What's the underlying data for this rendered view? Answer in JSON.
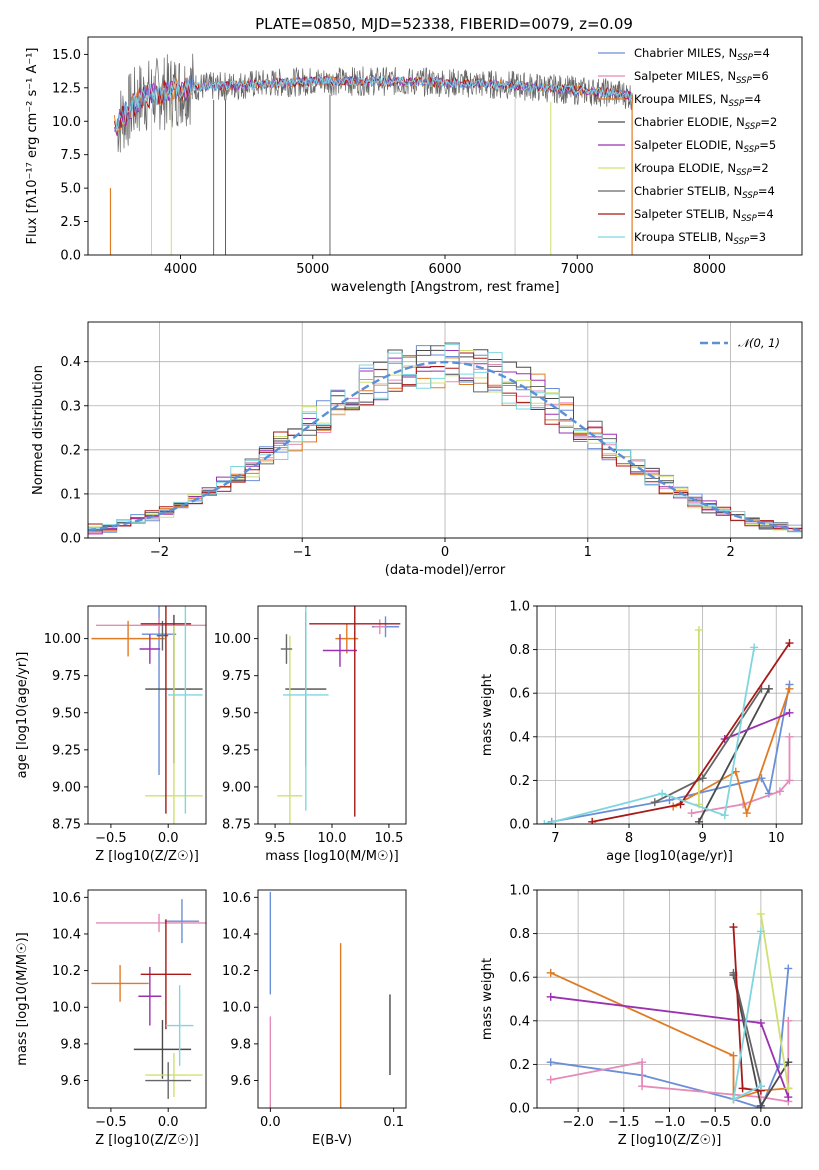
{
  "figure": {
    "title": "PLATE=0850, MJD=52338, FIBERID=0079, z=0.09"
  },
  "colors": {
    "chabrier_miles": "#6a8fd8",
    "salpeter_miles": "#e48bb8",
    "kroupa_miles": "#e07b25",
    "chabrier_elodie": "#4a4a4a",
    "salpeter_elodie": "#9b30b0",
    "kroupa_elodie": "#cfe070",
    "chabrier_stelib": "#666666",
    "salpeter_stelib": "#a81818",
    "kroupa_stelib": "#7fd6df",
    "normal_curve": "#5b8fd8"
  },
  "chart_data": [
    {
      "id": "spectrum",
      "type": "line",
      "title": "PLATE=0850, MJD=52338, FIBERID=0079, z=0.09",
      "xlabel": "wavelength [Angstrom, rest frame]",
      "ylabel": "Flux [fλ10⁻¹⁷ erg cm⁻² s⁻¹ A⁻¹]",
      "xlim": [
        3300,
        8700
      ],
      "ylim": [
        0,
        16.3
      ],
      "xticks": [
        "4000",
        "5000",
        "6000",
        "7000",
        "8000"
      ],
      "yticks": [
        "0.0",
        "2.5",
        "5.0",
        "7.5",
        "10.0",
        "12.5",
        "15.0"
      ],
      "legend_position": "upper right",
      "legend": [
        "Chabrier MILES, N_SSP=4",
        "Salpeter MILES, N_SSP=6",
        "Kroupa MILES, N_SSP=4",
        "Chabrier ELODIE, N_SSP=2",
        "Salpeter ELODIE, N_SSP=5",
        "Kroupa ELODIE, N_SSP=2",
        "Chabrier STELIB, N_SSP=4",
        "Salpeter STELIB, N_SSP=4",
        "Kroupa STELIB, N_SSP=3"
      ],
      "continuum": {
        "x": [
          3500,
          3700,
          3900,
          4100,
          4300,
          4600,
          5000,
          5500,
          6000,
          6500,
          7000,
          7300,
          7420
        ],
        "y": [
          9.6,
          11.8,
          12.2,
          12.6,
          12.6,
          12.8,
          13.0,
          13.0,
          12.9,
          12.7,
          12.3,
          12.1,
          11.9
        ]
      }
    },
    {
      "id": "residuals",
      "type": "line",
      "xlabel": "(data-model)/error",
      "ylabel": "Normed distribution",
      "xlim": [
        -2.5,
        2.5
      ],
      "ylim": [
        0,
        0.49
      ],
      "xticks": [
        "-2",
        "-1",
        "0",
        "1",
        "2"
      ],
      "yticks": [
        "0.0",
        "0.1",
        "0.2",
        "0.3",
        "0.4"
      ],
      "grid": true,
      "legend_position": "upper right",
      "legend": [
        "𝒩(0, 1)"
      ],
      "normal": {
        "mean": 0,
        "sigma": 1
      }
    },
    {
      "id": "age_vs_z",
      "type": "scatter",
      "xlabel": "Z [log10(Z/Z☉)]",
      "ylabel": "age  [log10(age/yr)]",
      "xlim": [
        -0.7,
        0.33
      ],
      "ylim": [
        8.75,
        10.22
      ],
      "xticks": [
        "-0.5",
        "0.0"
      ],
      "yticks": [
        "8.75",
        "9.00",
        "9.25",
        "9.50",
        "9.75",
        "10.00"
      ],
      "points": [
        {
          "x": -0.08,
          "y": 10.03,
          "xerr": 0.15,
          "yerr": 0.95
        },
        {
          "x": -0.08,
          "y": 10.09,
          "xerr": 0.55,
          "yerr": 0.05
        },
        {
          "x": -0.35,
          "y": 10.0,
          "xerr": 0.32,
          "yerr": 0.12
        },
        {
          "x": 0.05,
          "y": 9.66,
          "xerr": 0.25,
          "yerr": 0.5
        },
        {
          "x": -0.16,
          "y": 9.93,
          "xerr": 0.09,
          "yerr": 0.1
        },
        {
          "x": 0.05,
          "y": 8.94,
          "xerr": 0.25,
          "yerr": 1.15
        },
        {
          "x": -0.05,
          "y": 10.02,
          "xerr": 0.05,
          "yerr": 0.1
        },
        {
          "x": -0.02,
          "y": 10.1,
          "xerr": 0.22,
          "yerr": 1.28
        },
        {
          "x": 0.15,
          "y": 9.62,
          "xerr": 0.15,
          "yerr": 0.8
        }
      ]
    },
    {
      "id": "age_vs_mass",
      "type": "scatter",
      "xlabel": "mass [log10(M/M☉)]",
      "ylabel": "",
      "xlim": [
        9.35,
        10.65
      ],
      "ylim": [
        8.75,
        10.22
      ],
      "xticks": [
        "9.5",
        "10.0",
        "10.5"
      ],
      "yticks": [
        "8.75",
        "9.00",
        "9.25",
        "9.50",
        "9.75",
        "10.00"
      ],
      "points": [
        {
          "x": 10.47,
          "y": 10.08,
          "xerr": 0.12,
          "yerr": 0.07
        },
        {
          "x": 10.42,
          "y": 10.08,
          "xerr": 0.05,
          "yerr": 0.05
        },
        {
          "x": 10.13,
          "y": 10.0,
          "xerr": 0.1,
          "yerr": 0.1
        },
        {
          "x": 9.77,
          "y": 9.66,
          "xerr": 0.18,
          "yerr": 0.52
        },
        {
          "x": 10.07,
          "y": 9.92,
          "xerr": 0.15,
          "yerr": 0.11
        },
        {
          "x": 9.63,
          "y": 8.94,
          "xerr": 0.11,
          "yerr": 1.08
        },
        {
          "x": 9.6,
          "y": 9.93,
          "xerr": 0.05,
          "yerr": 0.1
        },
        {
          "x": 10.2,
          "y": 10.1,
          "xerr": 0.4,
          "yerr": 1.3
        },
        {
          "x": 9.77,
          "y": 9.62,
          "xerr": 0.2,
          "yerr": 0.78
        }
      ]
    },
    {
      "id": "weight_vs_age",
      "type": "line",
      "xlabel": "age  [log10(age/yr)]",
      "ylabel": "mass weight",
      "xlim": [
        6.75,
        10.35
      ],
      "ylim": [
        0,
        1.0
      ],
      "xticks": [
        "7",
        "8",
        "9",
        "10"
      ],
      "yticks": [
        "0.0",
        "0.2",
        "0.4",
        "0.6",
        "0.8",
        "1.0"
      ],
      "grid": true,
      "series": [
        {
          "name": "Chabrier MILES",
          "x": [
            6.95,
            8.55,
            9.8,
            9.9,
            10.18
          ],
          "y": [
            0.01,
            0.11,
            0.21,
            0.14,
            0.64
          ]
        },
        {
          "name": "Salpeter MILES",
          "x": [
            8.85,
            9.55,
            10.05,
            10.18,
            10.18
          ],
          "y": [
            0.05,
            0.09,
            0.15,
            0.2,
            0.4
          ]
        },
        {
          "name": "Kroupa MILES",
          "x": [
            8.6,
            9.45,
            9.6,
            10.18
          ],
          "y": [
            0.08,
            0.24,
            0.05,
            0.62
          ]
        },
        {
          "name": "Chabrier ELODIE",
          "x": [
            8.95,
            9.9
          ],
          "y": [
            0.01,
            0.62
          ]
        },
        {
          "name": "Salpeter ELODIE",
          "x": [
            9.3,
            10.18
          ],
          "y": [
            0.39,
            0.51
          ]
        },
        {
          "name": "Kroupa ELODIE",
          "x": [
            8.95,
            8.95
          ],
          "y": [
            0.09,
            0.89
          ]
        },
        {
          "name": "Chabrier STELIB",
          "x": [
            8.35,
            9.0,
            9.8
          ],
          "y": [
            0.1,
            0.21,
            0.62
          ]
        },
        {
          "name": "Salpeter STELIB",
          "x": [
            7.5,
            8.7,
            10.18
          ],
          "y": [
            0.01,
            0.09,
            0.83
          ]
        },
        {
          "name": "Kroupa STELIB",
          "x": [
            6.85,
            8.45,
            9.3,
            9.7
          ],
          "y": [
            0.0,
            0.14,
            0.04,
            0.81
          ]
        }
      ]
    },
    {
      "id": "mass_vs_z",
      "type": "scatter",
      "xlabel": "Z [log10(Z/Z☉)]",
      "ylabel": "mass [log10(M/M☉)]",
      "xlim": [
        -0.7,
        0.33
      ],
      "ylim": [
        9.45,
        10.64
      ],
      "xticks": [
        "-0.5",
        "0.0"
      ],
      "yticks": [
        "9.6",
        "9.8",
        "10.0",
        "10.2",
        "10.4",
        "10.6"
      ],
      "points": [
        {
          "x": 0.12,
          "y": 10.47,
          "xerr": 0.15,
          "yerr": 0.12
        },
        {
          "x": -0.08,
          "y": 10.46,
          "xerr": 0.55,
          "yerr": 0.05
        },
        {
          "x": -0.42,
          "y": 10.13,
          "xerr": 0.25,
          "yerr": 0.1
        },
        {
          "x": -0.05,
          "y": 9.77,
          "xerr": 0.25,
          "yerr": 0.16
        },
        {
          "x": -0.16,
          "y": 10.06,
          "xerr": 0.1,
          "yerr": 0.16
        },
        {
          "x": 0.05,
          "y": 9.63,
          "xerr": 0.25,
          "yerr": 0.12
        },
        {
          "x": 0.0,
          "y": 9.6,
          "xerr": 0.2,
          "yerr": 0.1
        },
        {
          "x": -0.02,
          "y": 10.18,
          "xerr": 0.22,
          "yerr": 0.3
        },
        {
          "x": 0.1,
          "y": 9.9,
          "xerr": 0.12,
          "yerr": 0.22
        }
      ]
    },
    {
      "id": "mass_vs_ebv",
      "type": "scatter",
      "xlabel": "E(B-V)",
      "ylabel": "",
      "xlim": [
        -0.01,
        0.11
      ],
      "ylim": [
        9.45,
        10.64
      ],
      "xticks": [
        "0.0",
        "0.1"
      ],
      "yticks": [
        "9.6",
        "9.8",
        "10.0",
        "10.2",
        "10.4",
        "10.6"
      ],
      "points": [
        {
          "x": 0.0,
          "y": 10.35,
          "xerr": 0,
          "yerr": 0.28
        },
        {
          "x": 0.0,
          "y": 9.7,
          "xerr": 0,
          "yerr": 0.25
        },
        {
          "x": 0.057,
          "y": 9.9,
          "xerr": 0,
          "yerr": 0.45
        },
        {
          "x": 0.097,
          "y": 9.85,
          "xerr": 0,
          "yerr": 0.22
        }
      ]
    },
    {
      "id": "weight_vs_z",
      "type": "line",
      "xlabel": "Z [log10(Z/Z☉)]",
      "ylabel": "mass weight",
      "xlim": [
        -2.45,
        0.45
      ],
      "ylim": [
        0,
        1.0
      ],
      "xticks": [
        "-2.0",
        "-1.5",
        "-1.0",
        "-0.5",
        "0.0"
      ],
      "yticks": [
        "0.0",
        "0.2",
        "0.4",
        "0.6",
        "0.8",
        "1.0"
      ],
      "grid": true,
      "series": [
        {
          "name": "Chabrier MILES",
          "x": [
            -2.3,
            -1.3,
            -0.3,
            0.0,
            0.2,
            0.3
          ],
          "y": [
            0.21,
            0.15,
            0.04,
            0.0,
            0.2,
            0.64
          ]
        },
        {
          "name": "Salpeter MILES",
          "x": [
            -2.3,
            -1.3,
            -1.3,
            0.0,
            0.3,
            0.3
          ],
          "y": [
            0.13,
            0.21,
            0.1,
            0.05,
            0.03,
            0.4
          ]
        },
        {
          "name": "Kroupa MILES",
          "x": [
            -2.3,
            -0.3,
            -0.3,
            0.0,
            0.3
          ],
          "y": [
            0.62,
            0.24,
            0.04,
            0.08,
            0.09
          ]
        },
        {
          "name": "Chabrier ELODIE",
          "x": [
            -0.3,
            0.0,
            0.3
          ],
          "y": [
            0.61,
            0.01,
            0.21
          ]
        },
        {
          "name": "Salpeter ELODIE",
          "x": [
            -2.3,
            0.0,
            0.3
          ],
          "y": [
            0.51,
            0.39,
            0.05
          ]
        },
        {
          "name": "Kroupa ELODIE",
          "x": [
            0.0,
            0.3
          ],
          "y": [
            0.89,
            0.09
          ]
        },
        {
          "name": "Chabrier STELIB",
          "x": [
            -0.3,
            0.0
          ],
          "y": [
            0.62,
            0.1
          ]
        },
        {
          "name": "Salpeter STELIB",
          "x": [
            -0.3,
            -0.2,
            0.0
          ],
          "y": [
            0.83,
            0.09,
            0.08
          ]
        },
        {
          "name": "Kroupa STELIB",
          "x": [
            0.0,
            -0.3,
            0.0
          ],
          "y": [
            0.81,
            0.04,
            0.1
          ]
        }
      ]
    }
  ]
}
